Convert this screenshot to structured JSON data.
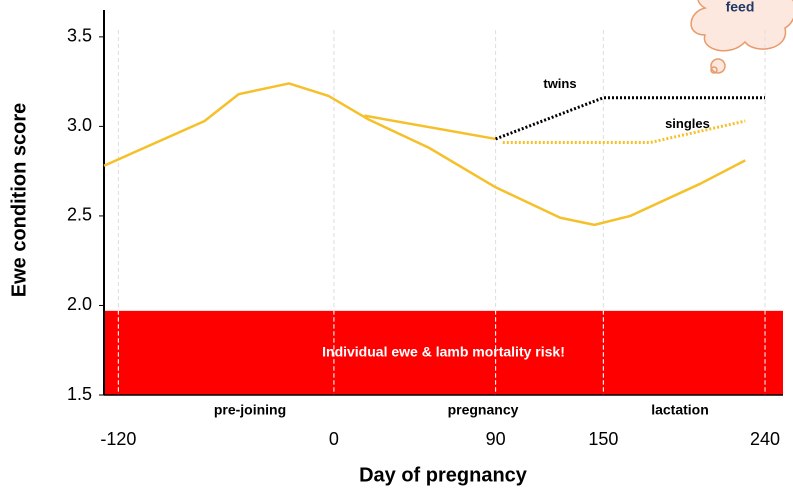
{
  "chart_data": {
    "type": "line",
    "xlabel": "Day of pregnancy",
    "ylabel": "Ewe condition score",
    "xlim": [
      -128,
      250
    ],
    "ylim": [
      1.5,
      3.65
    ],
    "xticks": [
      -120,
      0,
      90,
      150,
      240
    ],
    "yticks": [
      {
        "value": 1.5,
        "label": "1.5"
      },
      {
        "value": 2.0,
        "label": "2.0"
      },
      {
        "value": 2.5,
        "label": "2.5"
      },
      {
        "value": 3.0,
        "label": "3.0"
      },
      {
        "value": 3.5,
        "label": "3.5"
      }
    ],
    "grid": "x",
    "risk_zone": {
      "label": "Individual ewe & lamb mortality risk!",
      "from": 1.5,
      "to": 1.97,
      "color": "#ff0000"
    },
    "periods": [
      "pre-joining",
      "pregnancy",
      "lactation"
    ],
    "callout": "feed",
    "series": [
      {
        "color": "#f5c02a",
        "style": "solid",
        "x": [
          -128,
          -72,
          -53,
          -25,
          -3,
          19,
          53,
          90,
          126,
          145,
          165,
          204,
          229
        ],
        "values": [
          2.78,
          3.03,
          3.18,
          3.24,
          3.17,
          3.04,
          2.88,
          2.66,
          2.49,
          2.45,
          2.5,
          2.68,
          2.81
        ]
      },
      {
        "color": "#f5c02a",
        "style": "solid",
        "x": [
          17,
          90
        ],
        "values": [
          3.06,
          2.93
        ]
      },
      {
        "name": "twins",
        "color": "#000000",
        "style": "dotted",
        "x": [
          90,
          150,
          240
        ],
        "values": [
          2.93,
          3.16,
          3.16
        ]
      },
      {
        "name": "singles",
        "color": "#f5c02a",
        "style": "dotted",
        "x": [
          94,
          176,
          229
        ],
        "values": [
          2.91,
          2.91,
          3.03
        ]
      }
    ]
  }
}
